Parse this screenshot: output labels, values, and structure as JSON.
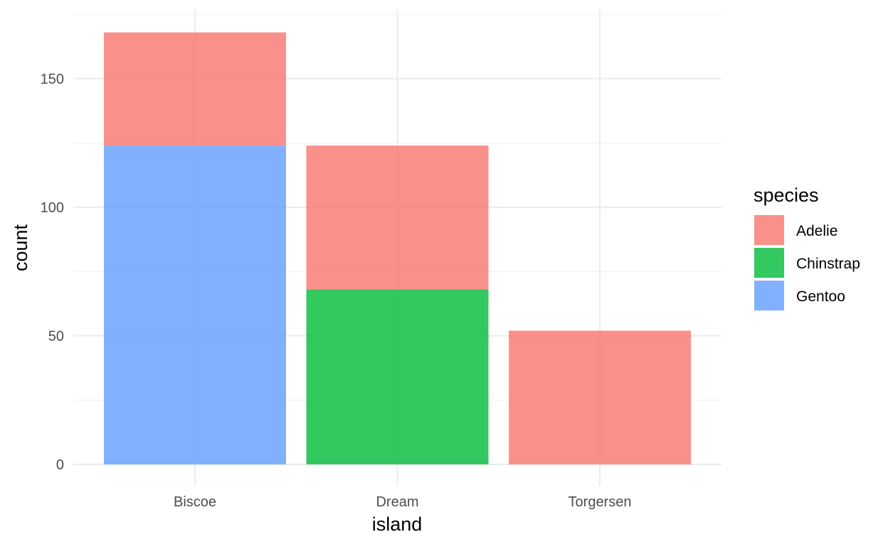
{
  "chart_data": {
    "type": "bar",
    "stacked": true,
    "categories": [
      "Biscoe",
      "Dream",
      "Torgersen"
    ],
    "series": [
      {
        "name": "Adelie",
        "values": [
          44,
          56,
          52
        ],
        "color": "#F8766D"
      },
      {
        "name": "Chinstrap",
        "values": [
          0,
          68,
          0
        ],
        "color": "#00BA38"
      },
      {
        "name": "Gentoo",
        "values": [
          124,
          0,
          0
        ],
        "color": "#619CFF"
      }
    ],
    "stack_order_bottom_to_top": [
      "Gentoo",
      "Chinstrap",
      "Adelie"
    ],
    "fill_opacity": 0.8,
    "xlabel": "island",
    "ylabel": "count",
    "ylim": [
      0,
      175
    ],
    "yticks": [
      0,
      50,
      100,
      150
    ],
    "yticks_minor": [
      25,
      75,
      125,
      175
    ],
    "ytick_labels": [
      "0",
      "50",
      "100",
      "150"
    ],
    "grid": true,
    "legend": {
      "title": "species",
      "position": "right",
      "entries": [
        "Adelie",
        "Chinstrap",
        "Gentoo"
      ]
    }
  }
}
